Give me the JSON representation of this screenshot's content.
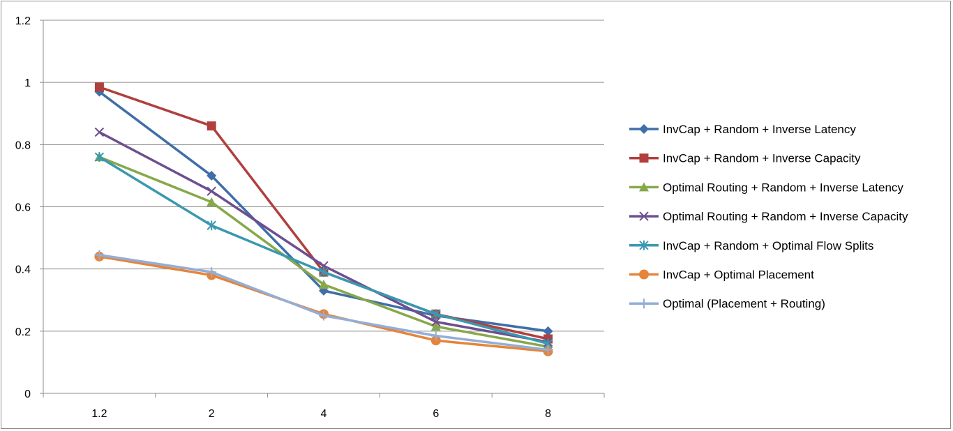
{
  "chart_data": {
    "type": "line",
    "title": "",
    "xlabel": "",
    "ylabel": "",
    "categories": [
      "1.2",
      "2",
      "4",
      "6",
      "8"
    ],
    "ylim": [
      0,
      1.2
    ],
    "yticks": [
      "0",
      "0.2",
      "0.4",
      "0.6",
      "0.8",
      "1",
      "1.2"
    ],
    "grid": "horizontal",
    "legend_position": "right",
    "series": [
      {
        "name": "InvCap + Random + Inverse Latency",
        "color": "#3f6ea8",
        "marker": "diamond",
        "values": [
          0.97,
          0.7,
          0.33,
          0.25,
          0.2
        ]
      },
      {
        "name": "InvCap + Random + Inverse Capacity",
        "color": "#b0403d",
        "marker": "square",
        "values": [
          0.985,
          0.86,
          0.39,
          0.255,
          0.175
        ]
      },
      {
        "name": "Optimal Routing + Random + Inverse Latency",
        "color": "#87a84a",
        "marker": "triangle",
        "values": [
          0.76,
          0.615,
          0.35,
          0.215,
          0.15
        ]
      },
      {
        "name": "Optimal Routing + Random + Inverse Capacity",
        "color": "#6d4e8f",
        "marker": "x",
        "values": [
          0.84,
          0.65,
          0.41,
          0.23,
          0.165
        ]
      },
      {
        "name": "InvCap + Random + Optimal Flow Splits",
        "color": "#3a98b0",
        "marker": "asterisk",
        "values": [
          0.76,
          0.54,
          0.39,
          0.255,
          0.16
        ]
      },
      {
        "name": "InvCap + Optimal Placement",
        "color": "#e6843a",
        "marker": "circle",
        "values": [
          0.44,
          0.38,
          0.255,
          0.17,
          0.135
        ]
      },
      {
        "name": "Optimal (Placement + Routing)",
        "color": "#92aed7",
        "marker": "plus",
        "values": [
          0.445,
          0.39,
          0.25,
          0.185,
          0.14
        ]
      }
    ]
  }
}
